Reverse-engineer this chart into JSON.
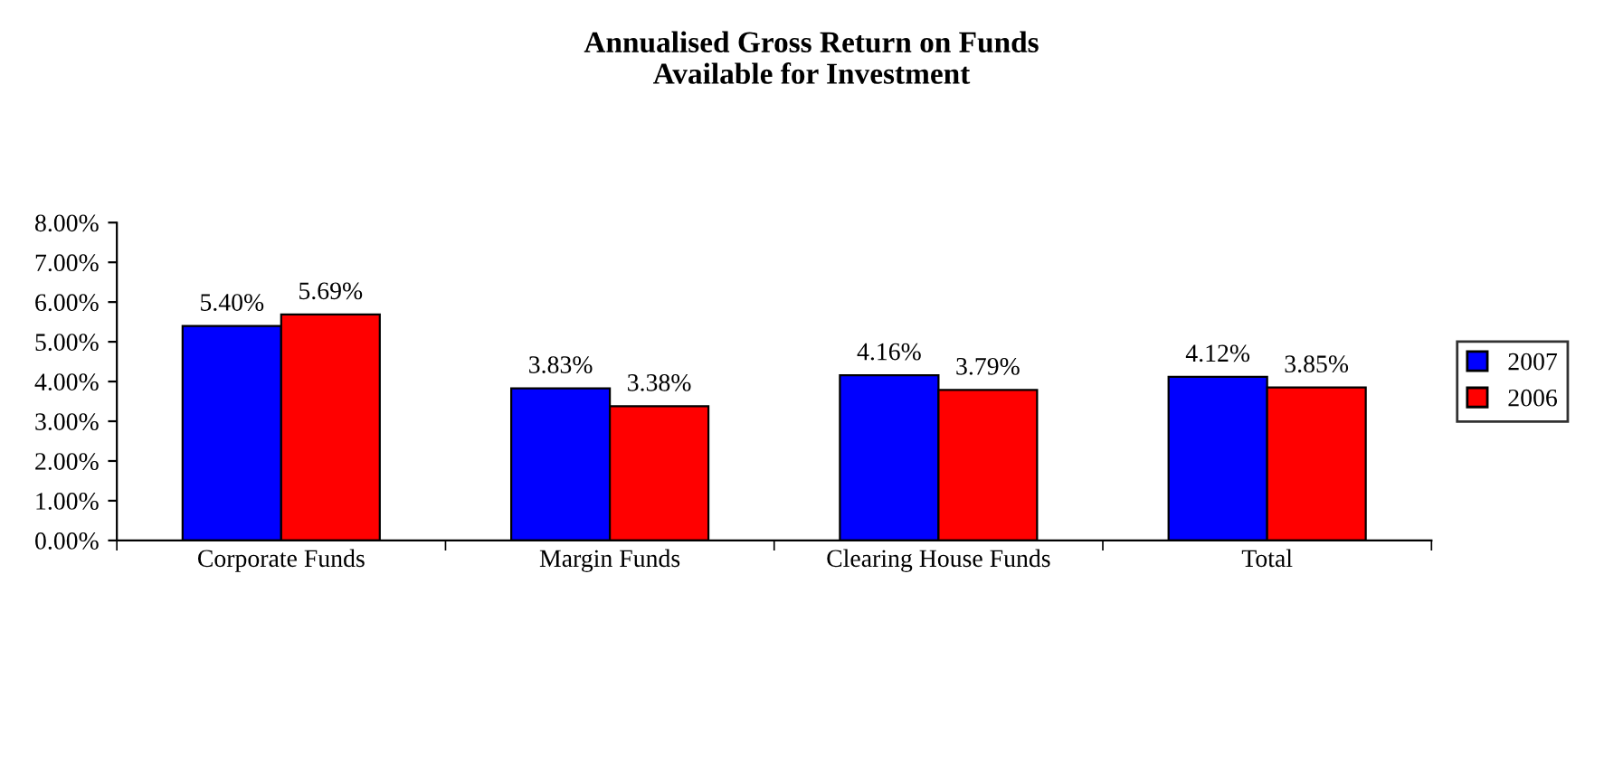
{
  "chart_data": {
    "type": "bar",
    "title": "Annualised Gross Return on Funds\nAvailable for Investment",
    "categories": [
      "Corporate Funds",
      "Margin Funds",
      "Clearing House Funds",
      "Total"
    ],
    "series": [
      {
        "name": "2007",
        "color": "#0000ff",
        "values": [
          5.4,
          3.83,
          4.16,
          4.12
        ],
        "value_labels": [
          "5.40%",
          "3.83%",
          "4.16%",
          "4.12%"
        ]
      },
      {
        "name": "2006",
        "color": "#ff0000",
        "values": [
          5.69,
          3.38,
          3.79,
          3.85
        ],
        "value_labels": [
          "5.69%",
          "3.38%",
          "3.79%",
          "3.85%"
        ]
      }
    ],
    "ylim": [
      0,
      8
    ],
    "yticks": [
      {
        "value": 0,
        "label": "0.00%"
      },
      {
        "value": 1,
        "label": "1.00%"
      },
      {
        "value": 2,
        "label": "2.00%"
      },
      {
        "value": 3,
        "label": "3.00%"
      },
      {
        "value": 4,
        "label": "4.00%"
      },
      {
        "value": 5,
        "label": "5.00%"
      },
      {
        "value": 6,
        "label": "6.00%"
      },
      {
        "value": 7,
        "label": "7.00%"
      },
      {
        "value": 8,
        "label": "8.00%"
      }
    ],
    "grid": false,
    "legend": "right"
  }
}
